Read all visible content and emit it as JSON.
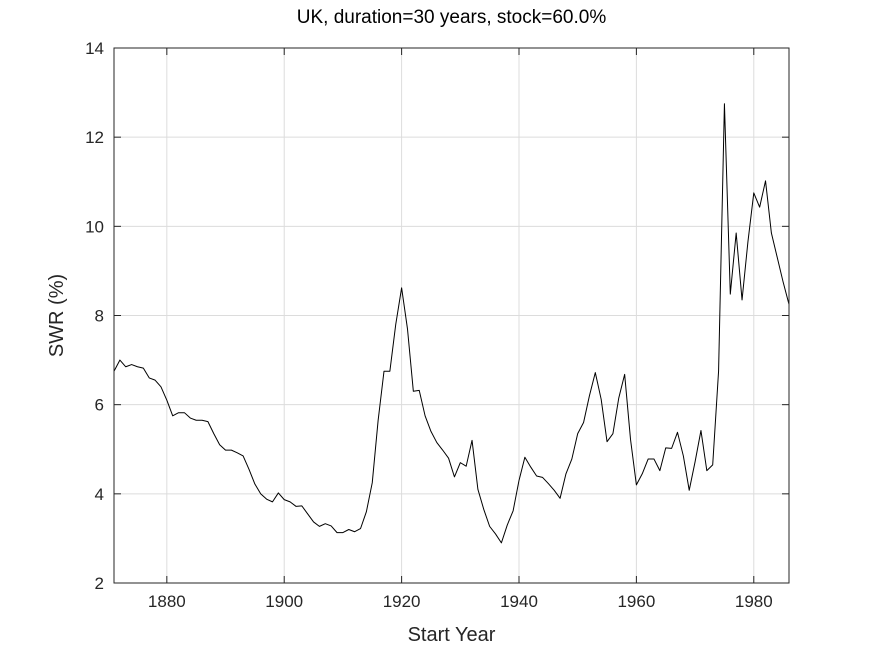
{
  "chart_data": {
    "type": "line",
    "title": "UK, duration=30 years, stock=60.0%",
    "xlabel": "Start Year",
    "ylabel": "SWR (%)",
    "xlim": [
      1871,
      1986
    ],
    "ylim": [
      2,
      14
    ],
    "xticks": [
      1880,
      1900,
      1920,
      1940,
      1960,
      1980
    ],
    "yticks": [
      2,
      4,
      6,
      8,
      10,
      12,
      14
    ],
    "grid": true,
    "line_color": "#000000",
    "series": [
      {
        "x": [
          1871,
          1872,
          1873,
          1874,
          1875,
          1876,
          1877,
          1878,
          1879,
          1880,
          1881,
          1882,
          1883,
          1884,
          1885,
          1886,
          1887,
          1888,
          1889,
          1890,
          1891,
          1892,
          1893,
          1894,
          1895,
          1896,
          1897,
          1898,
          1899,
          1900,
          1901,
          1902,
          1903,
          1904,
          1905,
          1906,
          1907,
          1908,
          1909,
          1910,
          1911,
          1912,
          1913,
          1914,
          1915,
          1916,
          1917,
          1918,
          1919,
          1920,
          1921,
          1922,
          1923,
          1924,
          1925,
          1926,
          1927,
          1928,
          1929,
          1930,
          1931,
          1932,
          1933,
          1934,
          1935,
          1936,
          1937,
          1938,
          1939,
          1940,
          1941,
          1942,
          1943,
          1944,
          1945,
          1946,
          1947,
          1948,
          1949,
          1950,
          1951,
          1952,
          1953,
          1954,
          1955,
          1956,
          1957,
          1958,
          1959,
          1960,
          1961,
          1962,
          1963,
          1964,
          1965,
          1966,
          1967,
          1968,
          1969,
          1970,
          1971,
          1972,
          1973,
          1974,
          1975,
          1976,
          1977,
          1978,
          1979,
          1980,
          1981,
          1982,
          1983,
          1984,
          1985,
          1986
        ],
        "y": [
          6.75,
          7.0,
          6.85,
          6.9,
          6.85,
          6.82,
          6.6,
          6.55,
          6.4,
          6.1,
          5.75,
          5.82,
          5.82,
          5.7,
          5.65,
          5.65,
          5.62,
          5.35,
          5.1,
          4.98,
          4.98,
          4.92,
          4.85,
          4.55,
          4.22,
          4.0,
          3.88,
          3.82,
          4.02,
          3.87,
          3.82,
          3.72,
          3.73,
          3.55,
          3.37,
          3.27,
          3.33,
          3.28,
          3.13,
          3.13,
          3.2,
          3.15,
          3.22,
          3.6,
          4.25,
          5.65,
          6.75,
          6.75,
          7.8,
          8.62,
          7.7,
          6.3,
          6.32,
          5.75,
          5.4,
          5.15,
          4.98,
          4.8,
          4.38,
          4.7,
          4.62,
          5.2,
          4.1,
          3.65,
          3.27,
          3.1,
          2.9,
          3.3,
          3.62,
          4.3,
          4.82,
          4.6,
          4.4,
          4.37,
          4.23,
          4.08,
          3.9,
          4.45,
          4.78,
          5.35,
          5.6,
          6.2,
          6.72,
          6.12,
          5.17,
          5.35,
          6.15,
          6.68,
          5.22,
          4.2,
          4.45,
          4.78,
          4.78,
          4.52,
          5.03,
          5.02,
          5.38,
          4.85,
          4.08,
          4.72,
          5.42,
          4.52,
          4.65,
          6.75,
          12.75,
          8.48,
          9.85,
          8.35,
          9.65,
          10.75,
          10.43,
          11.02,
          9.85,
          9.3,
          8.75,
          8.25
        ]
      }
    ]
  }
}
